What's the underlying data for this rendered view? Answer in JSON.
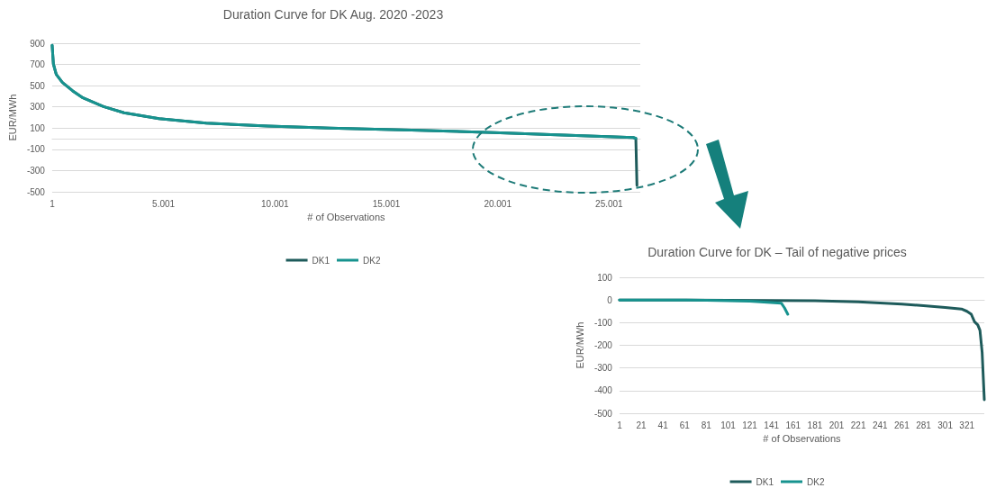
{
  "chart_data": [
    {
      "type": "line",
      "title": "Duration Curve for DK Aug. 2020 -2023",
      "xlabel": "# of Observations",
      "ylabel": "EUR/MWh",
      "xlim": [
        1,
        26400
      ],
      "xticks": [
        1,
        {
          "value": 5001,
          "label": "5.001"
        },
        {
          "value": 10001,
          "label": "10.001"
        },
        {
          "value": 15001,
          "label": "15.001"
        },
        {
          "value": 20001,
          "label": "20.001"
        },
        {
          "value": 25001,
          "label": "25.001"
        }
      ],
      "ylim": [
        -500,
        900
      ],
      "yticks": [
        -500,
        -300,
        -100,
        100,
        300,
        500,
        700,
        900
      ],
      "grid": "y",
      "legend": "bottom",
      "marker": "none",
      "line_style": "solid",
      "series": [
        {
          "name": "DK1",
          "color": "#1e5b5b",
          "x": [
            1,
            56,
            185,
            462,
            923,
            1384,
            2306,
            3227,
            4794,
            6915,
            9680,
            12445,
            16133,
            19820,
            23507,
            26088,
            26200,
            26250
          ],
          "values": [
            880,
            705,
            607,
            530,
            451,
            385,
            303,
            245,
            190,
            147,
            120,
            100,
            81,
            58,
            30,
            11,
            3,
            -440
          ]
        },
        {
          "name": "DK2",
          "color": "#17938f",
          "x": [
            1,
            56,
            185,
            462,
            923,
            1384,
            2306,
            3227,
            4794,
            6915,
            9680,
            12445,
            16133,
            19820,
            23507,
            26088,
            26200
          ],
          "values": [
            880,
            705,
            607,
            530,
            451,
            385,
            303,
            245,
            190,
            147,
            120,
            100,
            81,
            58,
            30,
            11,
            3
          ]
        }
      ]
    },
    {
      "type": "line",
      "title": "Duration Curve for DK – Tail of negative prices",
      "xlabel": "# of Observations",
      "ylabel": "EUR/MWh",
      "xlim": [
        1,
        337
      ],
      "xticks": [
        1,
        21,
        41,
        61,
        81,
        101,
        121,
        141,
        161,
        181,
        201,
        221,
        241,
        261,
        281,
        301,
        321
      ],
      "ylim": [
        -500,
        100
      ],
      "yticks": [
        -500,
        -400,
        -300,
        -200,
        -100,
        0,
        100
      ],
      "grid": "y",
      "legend": "bottom",
      "marker": "none",
      "line_style": "solid",
      "series": [
        {
          "name": "DK1",
          "color": "#1e5b5b",
          "x": [
            1,
            101,
            181,
            221,
            261,
            281,
            301,
            316,
            321,
            325,
            328,
            331,
            333,
            335,
            336,
            337
          ],
          "values": [
            0,
            -1,
            -3,
            -8,
            -18,
            -25,
            -33,
            -40,
            -50,
            -63,
            -96,
            -110,
            -134,
            -230,
            -335,
            -440
          ]
        },
        {
          "name": "DK2",
          "color": "#17938f",
          "x": [
            1,
            81,
            121,
            150,
            153,
            156
          ],
          "values": [
            0,
            -1,
            -5,
            -14,
            -35,
            -63
          ]
        }
      ]
    }
  ]
}
